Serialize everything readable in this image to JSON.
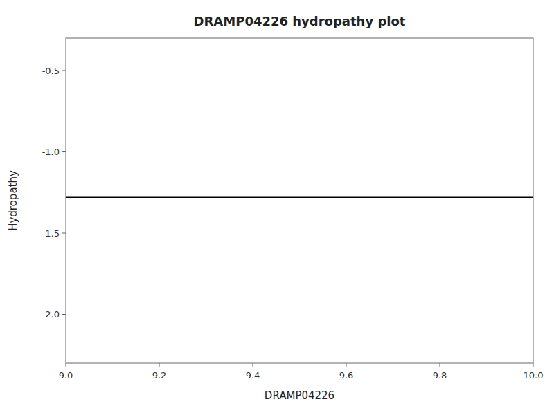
{
  "chart_data": {
    "type": "hline",
    "title": "DRAMP04226 hydropathy plot",
    "x_label": "DRAMP04226",
    "y_label": "Hydropathy",
    "values": [
      -1.28
    ],
    "color": "#000000",
    "xlim": [
      9.0,
      10.0
    ],
    "ylim": [
      -2.3,
      -0.3
    ],
    "xticks": [
      {
        "value": 9.0,
        "label": "9.0"
      },
      9.2,
      9.4,
      9.6,
      9.8,
      {
        "value": 10.0,
        "label": "10.0"
      }
    ],
    "yticks": [
      {
        "value": -2.0,
        "label": "-2.0"
      },
      -1.5,
      {
        "value": -1.0,
        "label": "-1.0"
      },
      -0.5
    ],
    "grid": false
  }
}
